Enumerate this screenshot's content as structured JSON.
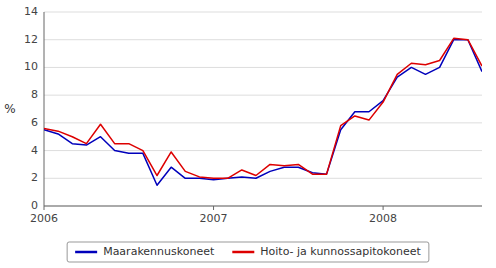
{
  "chart_data": {
    "type": "line",
    "ylabel": "%",
    "categories": [
      "2006",
      null,
      null,
      null,
      null,
      null,
      null,
      null,
      null,
      null,
      null,
      null,
      "2007",
      null,
      null,
      null,
      null,
      null,
      null,
      null,
      null,
      null,
      null,
      null,
      "2008",
      null,
      null,
      null,
      null,
      null,
      null,
      null
    ],
    "series": [
      {
        "name": "Maarakennuskoneet",
        "color": "#0000bb",
        "values": [
          5.5,
          5.2,
          4.5,
          4.4,
          5.0,
          4.0,
          3.8,
          3.8,
          1.5,
          2.8,
          2.0,
          2.0,
          1.9,
          2.0,
          2.1,
          2.0,
          2.5,
          2.8,
          2.8,
          2.4,
          2.3,
          5.5,
          6.8,
          6.8,
          7.6,
          9.3,
          10.0,
          9.5,
          10.0,
          12.0,
          12.0,
          9.7
        ]
      },
      {
        "name": "Hoito- ja kunnossapitokoneet",
        "color": "#dd0000",
        "values": [
          5.6,
          5.4,
          5.0,
          4.5,
          5.9,
          4.5,
          4.5,
          4.0,
          2.2,
          3.9,
          2.5,
          2.1,
          2.0,
          2.0,
          2.6,
          2.2,
          3.0,
          2.9,
          3.0,
          2.3,
          2.3,
          5.8,
          6.5,
          6.2,
          7.5,
          9.5,
          10.3,
          10.2,
          10.5,
          12.1,
          12.0,
          10.1
        ]
      }
    ],
    "ylim": [
      0,
      14
    ],
    "yticks": [
      0,
      2,
      4,
      6,
      8,
      10,
      12,
      14
    ],
    "grid": true,
    "legend": "bottom"
  }
}
